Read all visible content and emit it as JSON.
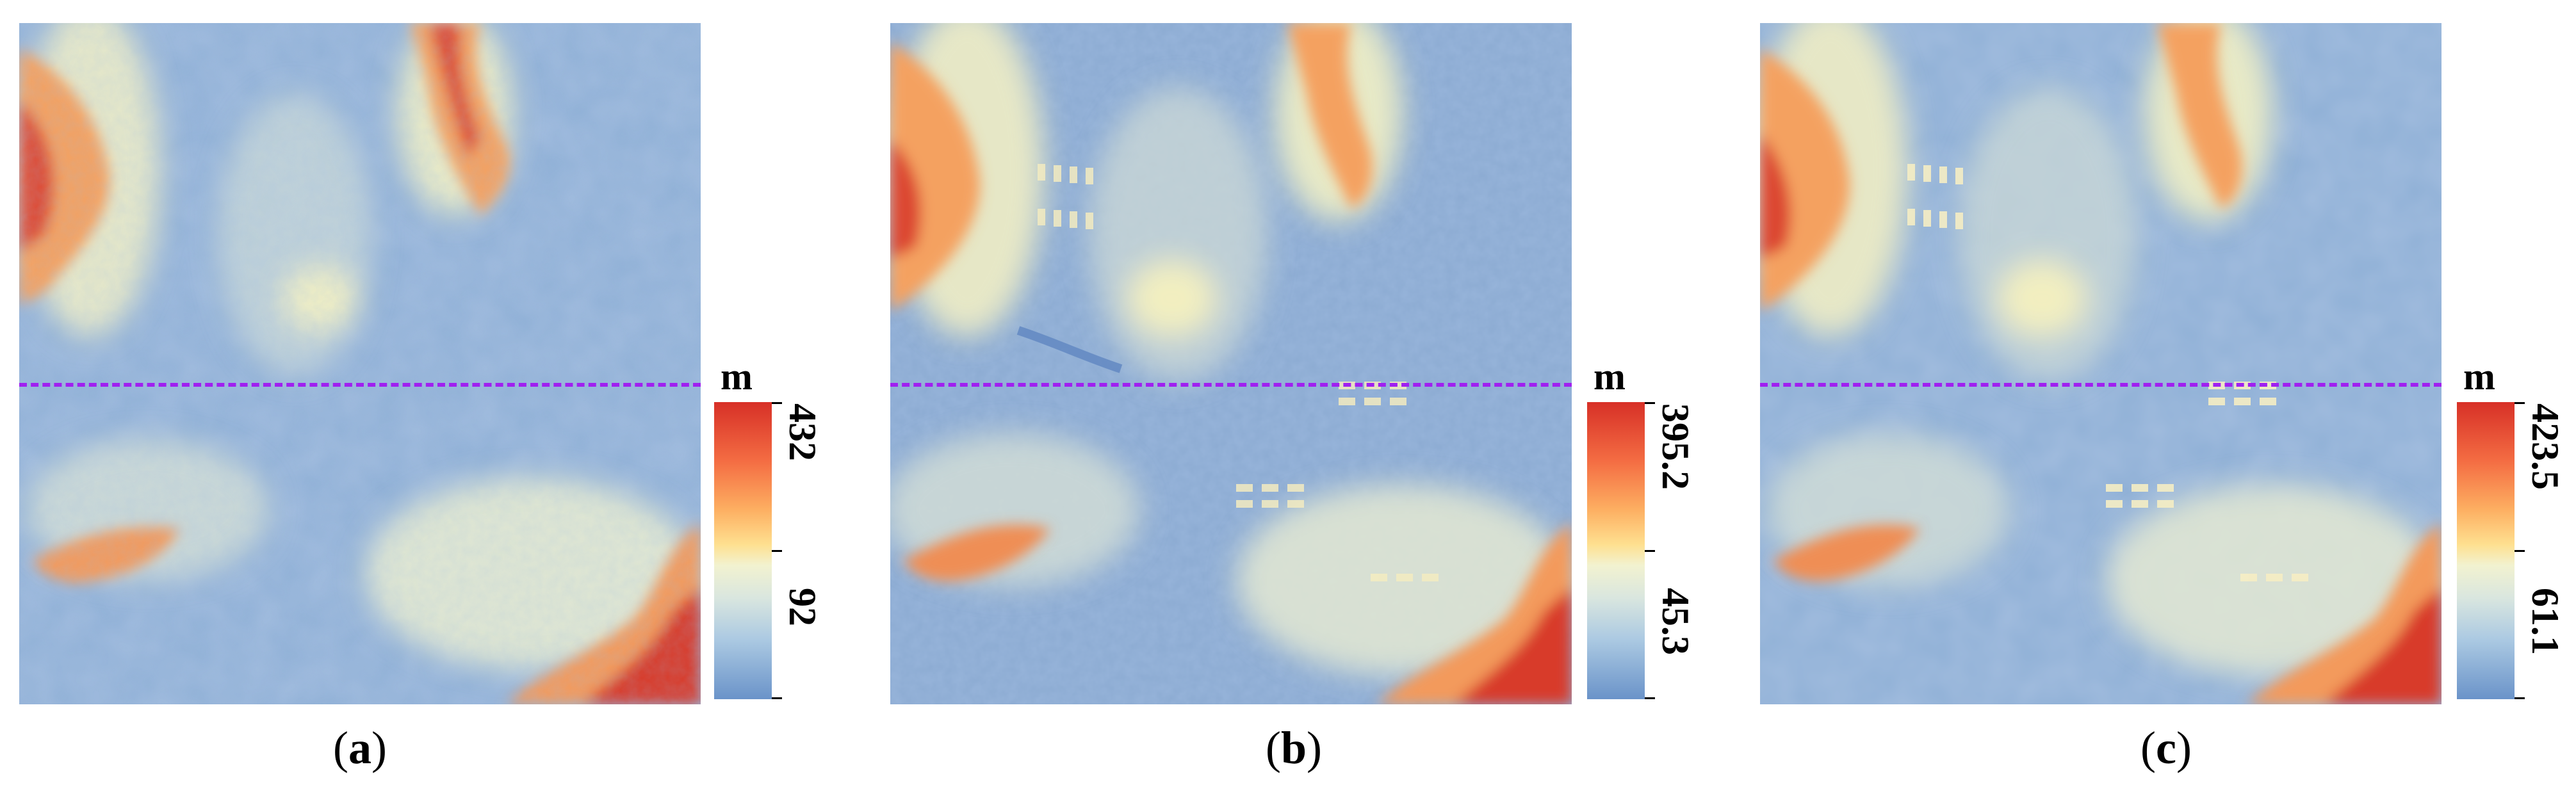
{
  "panels": [
    {
      "id": "a",
      "caption_letter": "a",
      "unit": "m",
      "max_label": "432",
      "min_label": "92"
    },
    {
      "id": "b",
      "caption_letter": "b",
      "unit": "m",
      "max_label": "395.2",
      "min_label": "45.3"
    },
    {
      "id": "c",
      "caption_letter": "c",
      "unit": "m",
      "max_label": "423.5",
      "min_label": "61.1"
    }
  ],
  "colors": {
    "ramp_high": "#d73027",
    "ramp_mid": "#f2f2d0",
    "ramp_low": "#6a93c9",
    "profile_line": "#a020f0",
    "base_terrain": "#8fb0d6"
  }
}
